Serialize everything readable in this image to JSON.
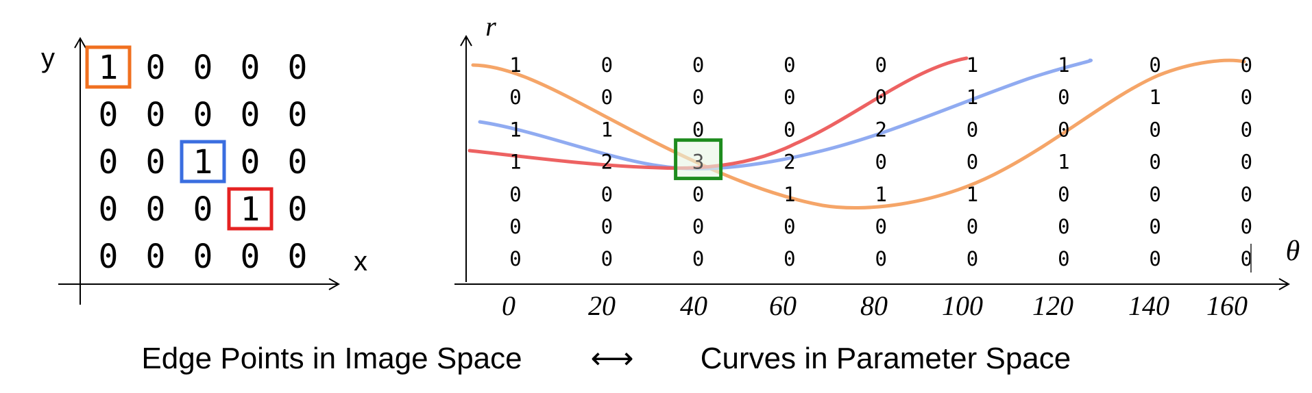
{
  "image_space": {
    "y_label": "y",
    "x_label": "x",
    "grid": [
      [
        "1",
        "0",
        "0",
        "0",
        "0"
      ],
      [
        "0",
        "0",
        "0",
        "0",
        "0"
      ],
      [
        "0",
        "0",
        "1",
        "0",
        "0"
      ],
      [
        "0",
        "0",
        "0",
        "1",
        "0"
      ],
      [
        "0",
        "0",
        "0",
        "0",
        "0"
      ]
    ],
    "highlights": [
      {
        "row": 0,
        "col": 0,
        "color": "#F07020"
      },
      {
        "row": 2,
        "col": 2,
        "color": "#3A6EE0"
      },
      {
        "row": 3,
        "col": 3,
        "color": "#E52222"
      }
    ]
  },
  "parameter_space": {
    "r_label": "r",
    "theta_label": "θ",
    "theta_ticks": [
      "0",
      "20",
      "40",
      "60",
      "80",
      "100",
      "120",
      "140",
      "160"
    ],
    "accumulator": [
      [
        "1",
        "0",
        "0",
        "0",
        "0",
        "1",
        "1",
        "0",
        "0"
      ],
      [
        "0",
        "0",
        "0",
        "0",
        "0",
        "1",
        "0",
        "1",
        "0"
      ],
      [
        "1",
        "1",
        "0",
        "0",
        "2",
        "0",
        "0",
        "0",
        "0"
      ],
      [
        "1",
        "2",
        "3",
        "2",
        "0",
        "0",
        "1",
        "0",
        "0"
      ],
      [
        "0",
        "0",
        "0",
        "1",
        "1",
        "1",
        "0",
        "0",
        "0"
      ],
      [
        "0",
        "0",
        "0",
        "0",
        "0",
        "0",
        "0",
        "0",
        "0"
      ],
      [
        "0",
        "0",
        "0",
        "0",
        "0",
        "0",
        "0",
        "0",
        "0"
      ]
    ],
    "peak": {
      "row": 3,
      "col": 2,
      "color": "#1E8C1E",
      "fill": "#E8F5E4"
    },
    "curves": [
      {
        "name": "orange",
        "color": "#F4A060"
      },
      {
        "name": "blue",
        "color": "#8AA6F0"
      },
      {
        "name": "red",
        "color": "#EC5A5A"
      }
    ]
  },
  "caption": {
    "left": "Edge Points in Image Space",
    "arrow": "⟷",
    "right": "Curves in Parameter Space"
  }
}
